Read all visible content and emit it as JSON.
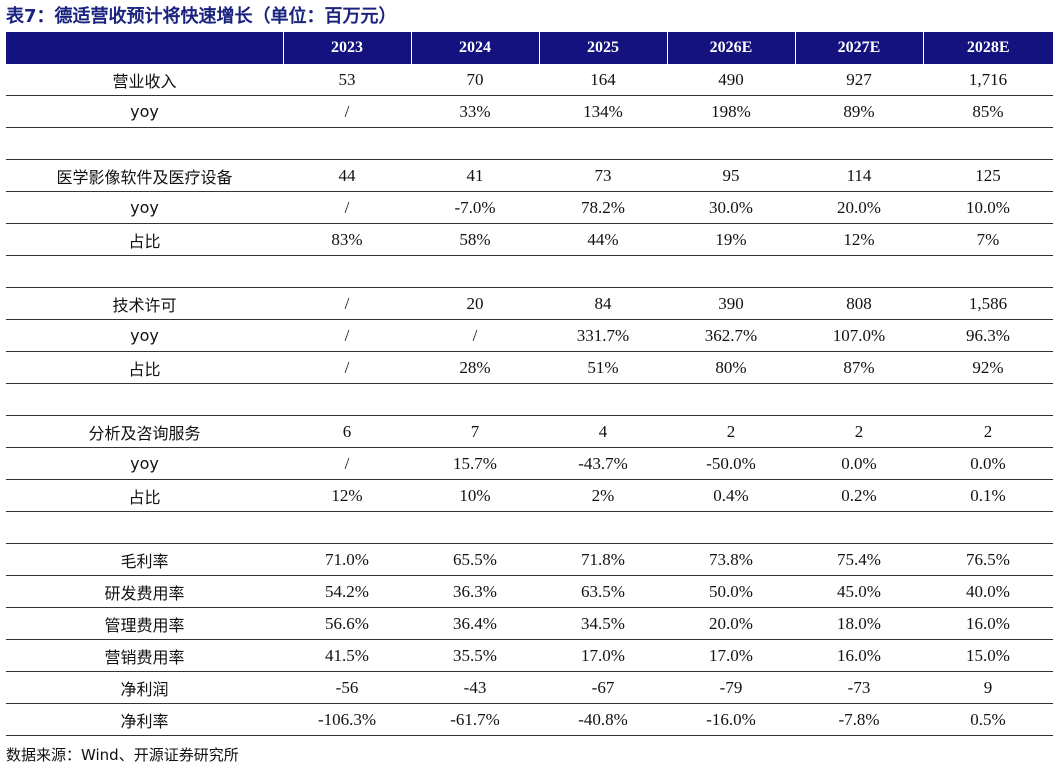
{
  "title": "表7：德适营收预计将快速增长（单位：百万元）",
  "table": {
    "header": [
      "",
      "2023",
      "2024",
      "2025",
      "2026E",
      "2027E",
      "2028E"
    ],
    "rows": [
      [
        "营业收入",
        "53",
        "70",
        "164",
        "490",
        "927",
        "1,716"
      ],
      [
        "yoy",
        "/",
        "33%",
        "134%",
        "198%",
        "89%",
        "85%"
      ],
      [
        "",
        "",
        "",
        "",
        "",
        "",
        ""
      ],
      [
        "医学影像软件及医疗设备",
        "44",
        "41",
        "73",
        "95",
        "114",
        "125"
      ],
      [
        "yoy",
        "/",
        "-7.0%",
        "78.2%",
        "30.0%",
        "20.0%",
        "10.0%"
      ],
      [
        "占比",
        "83%",
        "58%",
        "44%",
        "19%",
        "12%",
        "7%"
      ],
      [
        "",
        "",
        "",
        "",
        "",
        "",
        ""
      ],
      [
        "技术许可",
        "/",
        "20",
        "84",
        "390",
        "808",
        "1,586"
      ],
      [
        "yoy",
        "/",
        "/",
        "331.7%",
        "362.7%",
        "107.0%",
        "96.3%"
      ],
      [
        "占比",
        "/",
        "28%",
        "51%",
        "80%",
        "87%",
        "92%"
      ],
      [
        "",
        "",
        "",
        "",
        "",
        "",
        ""
      ],
      [
        "分析及咨询服务",
        "6",
        "7",
        "4",
        "2",
        "2",
        "2"
      ],
      [
        "yoy",
        "/",
        "15.7%",
        "-43.7%",
        "-50.0%",
        "0.0%",
        "0.0%"
      ],
      [
        "占比",
        "12%",
        "10%",
        "2%",
        "0.4%",
        "0.2%",
        "0.1%"
      ],
      [
        "",
        "",
        "",
        "",
        "",
        "",
        ""
      ],
      [
        "毛利率",
        "71.0%",
        "65.5%",
        "71.8%",
        "73.8%",
        "75.4%",
        "76.5%"
      ],
      [
        "研发费用率",
        "54.2%",
        "36.3%",
        "63.5%",
        "50.0%",
        "45.0%",
        "40.0%"
      ],
      [
        "管理费用率",
        "56.6%",
        "36.4%",
        "34.5%",
        "20.0%",
        "18.0%",
        "16.0%"
      ],
      [
        "营销费用率",
        "41.5%",
        "35.5%",
        "17.0%",
        "17.0%",
        "16.0%",
        "15.0%"
      ],
      [
        "净利润",
        "-56",
        "-43",
        "-67",
        "-79",
        "-73",
        "9"
      ],
      [
        "净利率",
        "-106.3%",
        "-61.7%",
        "-40.8%",
        "-16.0%",
        "-7.8%",
        "0.5%"
      ]
    ]
  },
  "source": "数据来源：Wind、开源证券研究所"
}
